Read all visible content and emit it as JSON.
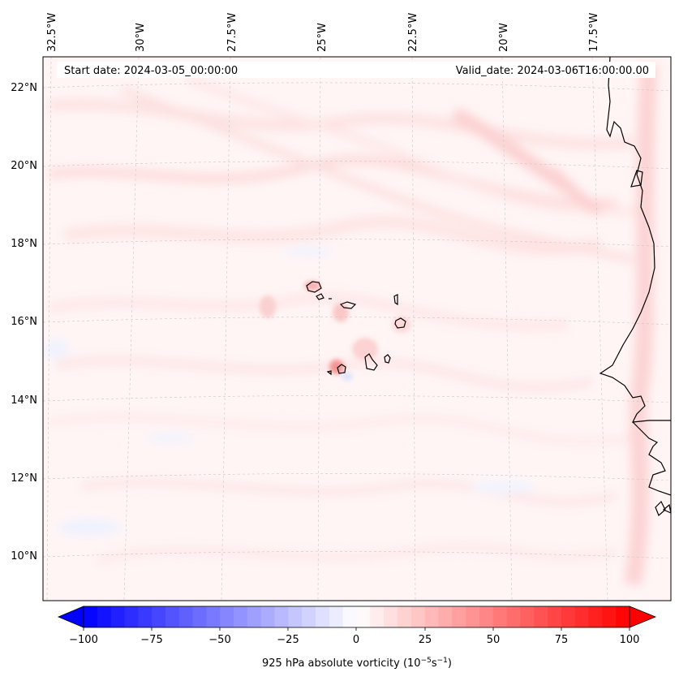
{
  "map": {
    "start_date": "Start date: 2024-03-05_00:00:00",
    "valid_date": "Valid_date: 2024-03-06T16:00:00.00",
    "lon_labels": [
      "32.5°W",
      "30°W",
      "27.5°W",
      "25°W",
      "22.5°W",
      "20°W",
      "17.5°W"
    ],
    "lat_labels": [
      "22°N",
      "20°N",
      "18°N",
      "16°N",
      "14°N",
      "12°N",
      "10°N"
    ]
  },
  "colorbar": {
    "label": "925 hPa absolute vorticity (10",
    "label_exp1": "−5",
    "label_mid": "s",
    "label_exp2": "−1",
    "label_end": ")",
    "ticks": [
      "−100",
      "−75",
      "−50",
      "−25",
      "0",
      "25",
      "50",
      "75",
      "100"
    ],
    "colors": {
      "negative_end": "#0000ff",
      "zero": "#ffffff",
      "positive_end": "#ff0000"
    }
  }
}
